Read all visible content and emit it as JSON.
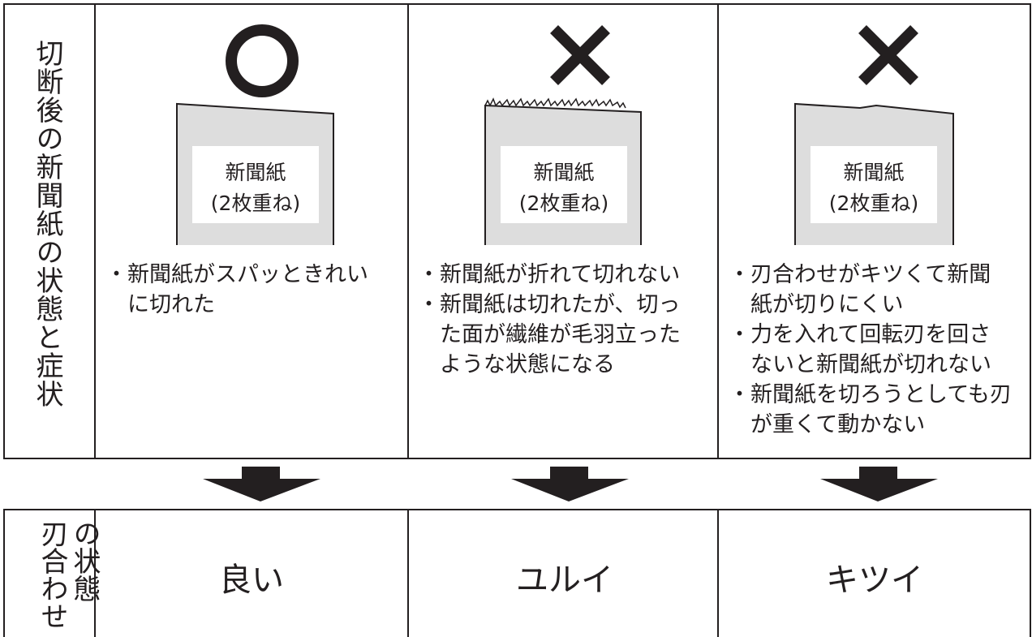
{
  "row_headers": {
    "result": "切断後の新聞紙の状態と症状",
    "blade": [
      "刃合わせ",
      "の状態"
    ]
  },
  "columns": [
    {
      "paper": [
        "新聞紙",
        "(2枚重ね)"
      ],
      "symptoms": [
        "新聞紙がスパッときれいに切れた"
      ],
      "state": "良い"
    },
    {
      "paper": [
        "新聞紙",
        "(2枚重ね)"
      ],
      "symptoms": [
        "新聞紙が折れて切れない",
        "新聞紙は切れたが、切った面が繊維が毛羽立ったような状態になる"
      ],
      "state": "ユルイ"
    },
    {
      "paper": [
        "新聞紙",
        "(2枚重ね)"
      ],
      "symptoms": [
        "刃合わせがキツくて新聞紙が切りにくい",
        "力を入れて回転刃を回さないと新聞紙が切れない",
        "新聞紙を切ろうとしても刃が重くて動かない"
      ],
      "state": "キツイ"
    }
  ]
}
